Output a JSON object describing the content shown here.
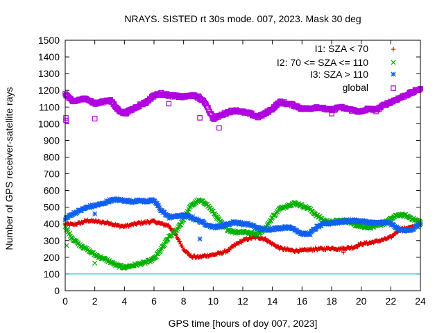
{
  "chart_data": {
    "type": "scatter",
    "title": "NRAYS. SISTED rt 30s mode. 007, 2023. Mask 30 deg",
    "xlabel": "GPS time [hours of doy 007, 2023]",
    "ylabel": "Number of GPS receiver-satellite rays",
    "xlim": [
      0,
      24
    ],
    "ylim": [
      0,
      1500
    ],
    "x_ticks": [
      "0",
      "2",
      "4",
      "6",
      "8",
      "10",
      "12",
      "14",
      "16",
      "18",
      "20",
      "22",
      "24"
    ],
    "y_ticks": [
      "0",
      "100",
      "200",
      "300",
      "400",
      "500",
      "600",
      "700",
      "800",
      "900",
      "1000",
      "1100",
      "1200",
      "1300",
      "1400",
      "1500"
    ],
    "legend_position": "top-right",
    "reference_line": {
      "y": 100,
      "color": "#00c0c0"
    },
    "series": [
      {
        "name": "I1: SZA < 70",
        "marker": "plus",
        "color": "#e00000",
        "x": [
          0,
          0.5,
          1,
          1.5,
          2,
          2.5,
          3,
          3.5,
          4,
          4.5,
          5,
          5.5,
          6,
          6.5,
          7,
          7.5,
          8,
          8.5,
          9,
          9.5,
          10,
          10.5,
          11,
          11.5,
          12,
          12.5,
          13,
          13.5,
          14,
          14.5,
          15,
          15.5,
          16,
          16.5,
          17,
          17.5,
          18,
          18.5,
          19,
          19.5,
          20,
          20.5,
          21,
          21.5,
          22,
          22.5,
          23,
          23.5,
          24
        ],
        "values": [
          400,
          395,
          405,
          420,
          415,
          410,
          405,
          390,
          385,
          395,
          405,
          410,
          415,
          400,
          390,
          330,
          250,
          205,
          200,
          210,
          215,
          225,
          240,
          275,
          300,
          315,
          320,
          310,
          280,
          255,
          245,
          240,
          240,
          245,
          250,
          250,
          255,
          250,
          255,
          260,
          280,
          285,
          295,
          305,
          320,
          360,
          375,
          380,
          400
        ]
      },
      {
        "name": "I2: 70 <= SZA <= 110",
        "marker": "cross",
        "color": "#00b000",
        "x": [
          0,
          0.5,
          1,
          1.5,
          2,
          2.5,
          3,
          3.5,
          4,
          4.5,
          5,
          5.5,
          6,
          6.5,
          7,
          7.5,
          8,
          8.5,
          9,
          9.5,
          10,
          10.5,
          11,
          11.5,
          12,
          12.5,
          13,
          13.5,
          14,
          14.5,
          15,
          15.5,
          16,
          16.5,
          17,
          17.5,
          18,
          18.5,
          19,
          19.5,
          20,
          20.5,
          21,
          21.5,
          22,
          22.5,
          23,
          23.5,
          24
        ],
        "values": [
          380,
          310,
          275,
          245,
          215,
          195,
          175,
          150,
          140,
          150,
          160,
          170,
          190,
          250,
          320,
          360,
          430,
          510,
          540,
          525,
          470,
          410,
          365,
          350,
          355,
          345,
          340,
          370,
          440,
          490,
          510,
          525,
          510,
          490,
          450,
          420,
          410,
          420,
          420,
          400,
          385,
          380,
          385,
          400,
          430,
          455,
          450,
          430,
          410
        ]
      },
      {
        "name": "I3: SZA > 110",
        "marker": "star",
        "color": "#1060f0",
        "x": [
          0,
          0.5,
          1,
          1.5,
          2,
          2.5,
          3,
          3.5,
          4,
          4.5,
          5,
          5.5,
          6,
          6.5,
          7,
          7.5,
          8,
          8.5,
          9,
          9.5,
          10,
          10.5,
          11,
          11.5,
          12,
          12.5,
          13,
          13.5,
          14,
          14.5,
          15,
          15.5,
          16,
          16.5,
          17,
          17.5,
          18,
          18.5,
          19,
          19.5,
          20,
          20.5,
          21,
          21.5,
          22,
          22.5,
          23,
          23.5,
          24
        ],
        "values": [
          430,
          460,
          480,
          500,
          510,
          520,
          540,
          545,
          540,
          535,
          540,
          535,
          540,
          480,
          440,
          445,
          450,
          440,
          420,
          400,
          380,
          385,
          400,
          410,
          400,
          395,
          375,
          365,
          370,
          375,
          380,
          370,
          340,
          340,
          380,
          400,
          405,
          410,
          415,
          420,
          415,
          410,
          405,
          410,
          400,
          370,
          360,
          370,
          400
        ]
      },
      {
        "name": "global",
        "marker": "square",
        "color": "#b000e0",
        "x": [
          0,
          0.5,
          1,
          1.5,
          2,
          2.5,
          3,
          3.5,
          4,
          4.5,
          5,
          5.5,
          6,
          6.5,
          7,
          7.5,
          8,
          8.5,
          9,
          9.5,
          10,
          10.5,
          11,
          11.5,
          12,
          12.5,
          13,
          13.5,
          14,
          14.5,
          15,
          15.5,
          16,
          16.5,
          17,
          17.5,
          18,
          18.5,
          19,
          19.5,
          20,
          20.5,
          21,
          21.5,
          22,
          22.5,
          23,
          23.5,
          24
        ],
        "values": [
          1180,
          1130,
          1145,
          1150,
          1120,
          1130,
          1145,
          1090,
          1060,
          1085,
          1110,
          1130,
          1170,
          1180,
          1170,
          1165,
          1160,
          1170,
          1160,
          1120,
          1030,
          1050,
          1070,
          1080,
          1070,
          1060,
          1040,
          1060,
          1090,
          1130,
          1120,
          1110,
          1090,
          1090,
          1100,
          1090,
          1080,
          1100,
          1090,
          1080,
          1070,
          1090,
          1080,
          1110,
          1130,
          1150,
          1170,
          1190,
          1210
        ]
      }
    ],
    "outliers": [
      {
        "series": "global",
        "x": 0.05,
        "y": 1020
      },
      {
        "series": "global",
        "x": 0.05,
        "y": 1035
      },
      {
        "series": "global",
        "x": 2.0,
        "y": 1030
      },
      {
        "series": "global",
        "x": 7.0,
        "y": 1120
      },
      {
        "series": "global",
        "x": 9.1,
        "y": 1035
      },
      {
        "series": "global",
        "x": 10.4,
        "y": 975
      },
      {
        "series": "global",
        "x": 18.0,
        "y": 1060
      },
      {
        "series": "I2: 70 <= SZA <= 110",
        "x": 0.1,
        "y": 270
      },
      {
        "series": "I2: 70 <= SZA <= 110",
        "x": 2.0,
        "y": 165
      },
      {
        "series": "I3: SZA > 110",
        "x": 2.0,
        "y": 460
      },
      {
        "series": "I3: SZA > 110",
        "x": 9.1,
        "y": 310
      },
      {
        "series": "I1: SZA < 70",
        "x": 18.8,
        "y": 230
      }
    ]
  }
}
